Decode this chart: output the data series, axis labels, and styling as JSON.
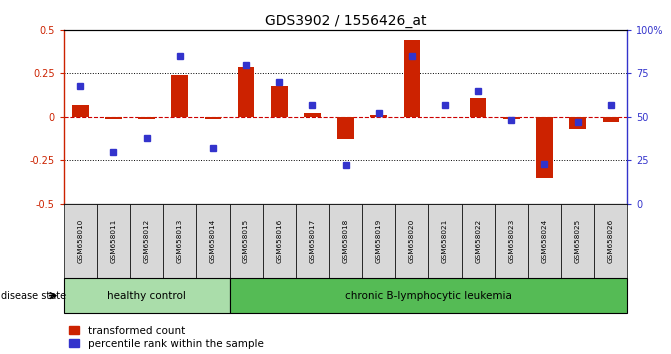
{
  "title": "GDS3902 / 1556426_at",
  "samples": [
    "GSM658010",
    "GSM658011",
    "GSM658012",
    "GSM658013",
    "GSM658014",
    "GSM658015",
    "GSM658016",
    "GSM658017",
    "GSM658018",
    "GSM658019",
    "GSM658020",
    "GSM658021",
    "GSM658022",
    "GSM658023",
    "GSM658024",
    "GSM658025",
    "GSM658026"
  ],
  "red_values": [
    0.07,
    -0.01,
    -0.01,
    0.24,
    -0.01,
    0.29,
    0.18,
    0.02,
    -0.13,
    0.01,
    0.44,
    0.0,
    0.11,
    -0.01,
    -0.35,
    -0.07,
    -0.03
  ],
  "blue_values": [
    68,
    30,
    38,
    85,
    32,
    80,
    70,
    57,
    22,
    52,
    85,
    57,
    65,
    48,
    23,
    47,
    57
  ],
  "healthy_count": 5,
  "healthy_label": "healthy control",
  "disease_label": "chronic B-lymphocytic leukemia",
  "disease_state_label": "disease state",
  "legend_red": "transformed count",
  "legend_blue": "percentile rank within the sample",
  "red_color": "#cc2200",
  "blue_color": "#3333cc",
  "healthy_bg": "#aaddaa",
  "disease_bg": "#55bb55",
  "bar_bg": "#d8d8d8",
  "zero_line_color": "#cc0000",
  "grid_color": "#444444",
  "ylim_left": [
    -0.5,
    0.5
  ],
  "ylim_right": [
    0,
    100
  ],
  "yticks_left": [
    -0.5,
    -0.25,
    0.0,
    0.25,
    0.5
  ],
  "yticks_right": [
    0,
    25,
    50,
    75,
    100
  ]
}
